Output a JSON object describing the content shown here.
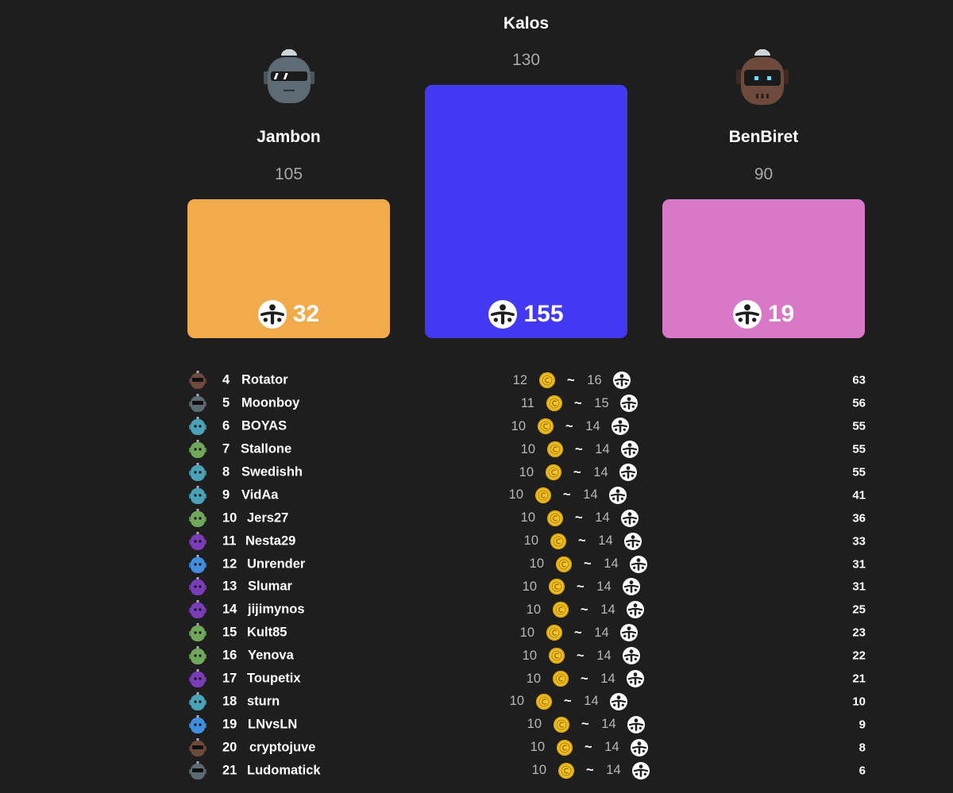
{
  "podium": {
    "first": {
      "name": "Kalos",
      "score": "130",
      "tokens": "155",
      "color": "#4339f2"
    },
    "second": {
      "name": "Jambon",
      "score": "105",
      "tokens": "32",
      "color": "#f2ab4a",
      "avatar": "robot-grey-sunglasses-icon"
    },
    "third": {
      "name": "BenBiret",
      "score": "90",
      "tokens": "19",
      "color": "#d878c6",
      "avatar": "robot-brown-visor-icon"
    }
  },
  "rows": [
    {
      "rank": "4",
      "name": "Rotator",
      "min": "12",
      "max": "16",
      "points": "63",
      "avatar": "brown"
    },
    {
      "rank": "5",
      "name": "Moonboy",
      "min": "11",
      "max": "15",
      "points": "56",
      "avatar": "grey"
    },
    {
      "rank": "6",
      "name": "BOYAS",
      "min": "10",
      "max": "14",
      "points": "55",
      "avatar": "teal"
    },
    {
      "rank": "7",
      "name": "Stallone",
      "min": "10",
      "max": "14",
      "points": "55",
      "avatar": "green"
    },
    {
      "rank": "8",
      "name": "Swedishh",
      "min": "10",
      "max": "14",
      "points": "55",
      "avatar": "teal"
    },
    {
      "rank": "9",
      "name": "VidAa",
      "min": "10",
      "max": "14",
      "points": "41",
      "avatar": "teal"
    },
    {
      "rank": "10",
      "name": "Jers27",
      "min": "10",
      "max": "14",
      "points": "36",
      "avatar": "green"
    },
    {
      "rank": "11",
      "name": "Nesta29",
      "min": "10",
      "max": "14",
      "points": "33",
      "avatar": "purple"
    },
    {
      "rank": "12",
      "name": "Unrender",
      "min": "10",
      "max": "14",
      "points": "31",
      "avatar": "blue"
    },
    {
      "rank": "13",
      "name": "Slumar",
      "min": "10",
      "max": "14",
      "points": "31",
      "avatar": "purple"
    },
    {
      "rank": "14",
      "name": "jijimynos",
      "min": "10",
      "max": "14",
      "points": "25",
      "avatar": "purple"
    },
    {
      "rank": "15",
      "name": "Kult85",
      "min": "10",
      "max": "14",
      "points": "23",
      "avatar": "green"
    },
    {
      "rank": "16",
      "name": "Yenova",
      "min": "10",
      "max": "14",
      "points": "22",
      "avatar": "green"
    },
    {
      "rank": "17",
      "name": "Toupetix",
      "min": "10",
      "max": "14",
      "points": "21",
      "avatar": "purple"
    },
    {
      "rank": "18",
      "name": "sturn",
      "min": "10",
      "max": "14",
      "points": "10",
      "avatar": "teal"
    },
    {
      "rank": "19",
      "name": "LNvsLN",
      "min": "10",
      "max": "14",
      "points": "9",
      "avatar": "blue"
    },
    {
      "rank": "20",
      "name": "cryptojuve",
      "min": "10",
      "max": "14",
      "points": "8",
      "avatar": "brown"
    },
    {
      "rank": "21",
      "name": "Ludomatick",
      "min": "10",
      "max": "14",
      "points": "6",
      "avatar": "grey"
    }
  ],
  "tilde": "~",
  "colors": {
    "coin": "#f0c020",
    "avatar_brown": "#6e4a3c",
    "avatar_grey": "#5d6b75",
    "avatar_teal": "#49a2b8",
    "avatar_green": "#6fa85a",
    "avatar_purple": "#7a3cb8",
    "avatar_blue": "#3f8ee0"
  }
}
